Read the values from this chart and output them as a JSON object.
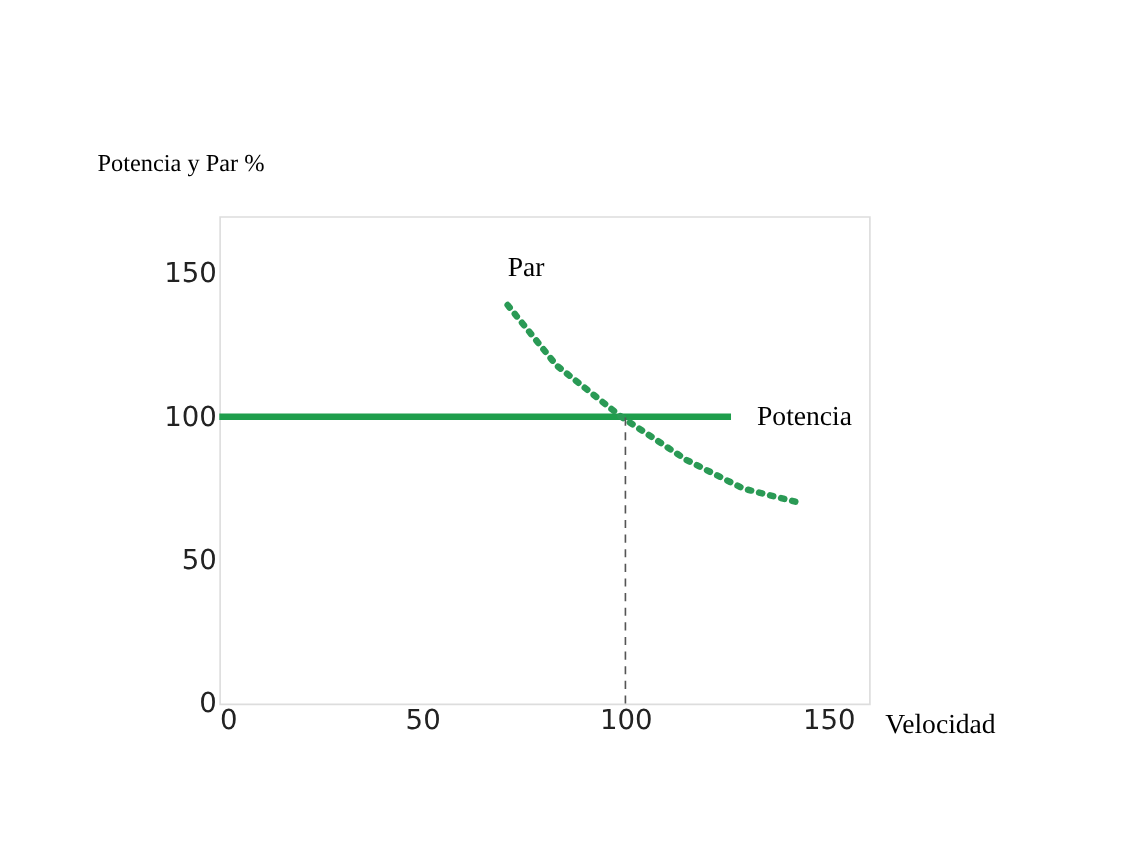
{
  "chart_data": {
    "type": "line",
    "ylabel": "Potencia y Par %",
    "xlabel": "Velocidad",
    "xlim": [
      0,
      160
    ],
    "ylim": [
      0,
      170
    ],
    "xticks": [
      0,
      50,
      100,
      150
    ],
    "yticks": [
      0,
      50,
      100,
      150
    ],
    "grid": false,
    "marker": "none",
    "series": [
      {
        "name": "Potencia",
        "color": "#1f9e4c",
        "line_style": "solid",
        "x": [
          0,
          126
        ],
        "values": [
          100,
          100
        ]
      },
      {
        "name": "Par",
        "color": "#2a9a55",
        "line_style": "dotted",
        "x": [
          71,
          83,
          99,
          115,
          129,
          143
        ],
        "values": [
          139,
          118,
          100,
          85,
          75,
          70
        ]
      }
    ],
    "ref_lines": [
      {
        "axis": "x",
        "value": 100,
        "color": "#555555",
        "line_style": "dashed"
      }
    ]
  }
}
